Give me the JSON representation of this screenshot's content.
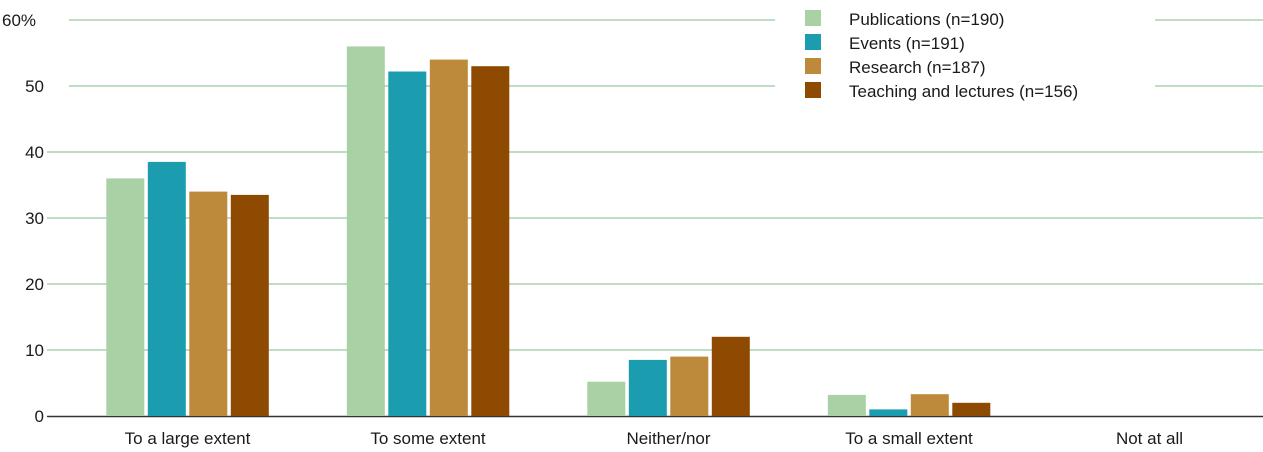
{
  "chart_data": {
    "type": "bar",
    "title": "",
    "xlabel": "",
    "ylabel": "",
    "ylim": [
      0,
      60
    ],
    "y_ticks": [
      0,
      10,
      20,
      30,
      40,
      50,
      60
    ],
    "y_tick_labels": [
      "0",
      "10",
      "20",
      "30",
      "40",
      "50",
      "60%"
    ],
    "grid": true,
    "legend_position": "top-right",
    "categories": [
      "To a large extent",
      "To some extent",
      "Neither/nor",
      "To a small extent",
      "Not at all"
    ],
    "series": [
      {
        "name": "Publications (n=190)",
        "color": "#aad1a5",
        "values": [
          36,
          56,
          5.2,
          3.2,
          0
        ]
      },
      {
        "name": "Events (n=191)",
        "color": "#1b9caf",
        "values": [
          38.5,
          52.2,
          8.5,
          1,
          0
        ]
      },
      {
        "name": "Research (n=187)",
        "color": "#bc8a3a",
        "values": [
          34,
          54,
          9,
          3.3,
          0
        ]
      },
      {
        "name": "Teaching and lectures (n=156)",
        "color": "#8e4a00",
        "values": [
          33.5,
          53,
          12,
          2,
          0
        ]
      }
    ],
    "colors": {
      "gridline": "#7dbb86",
      "baseline": "#333333",
      "text": "#1a1a1a"
    }
  }
}
